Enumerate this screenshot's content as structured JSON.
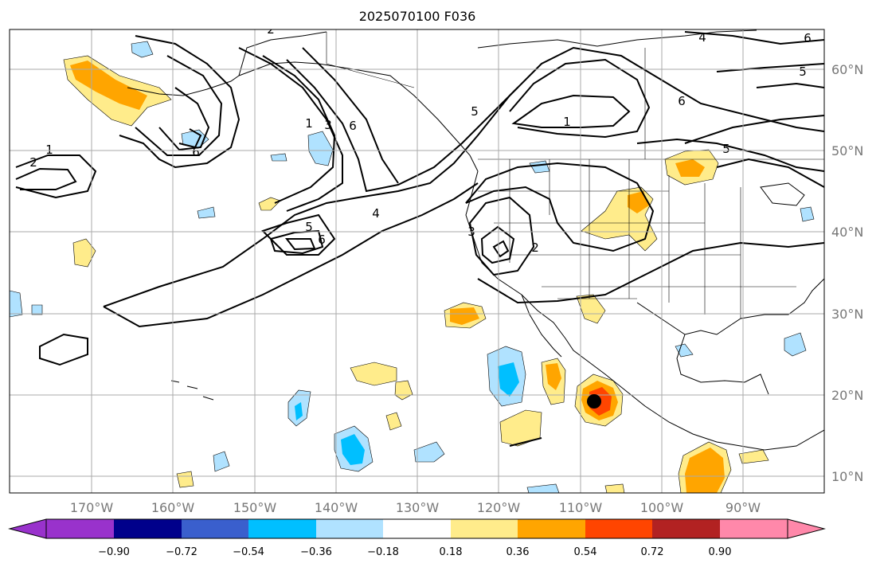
{
  "title": "2025070100 F036",
  "longitude_ticks": [
    "170°W",
    "160°W",
    "150°W",
    "140°W",
    "130°W",
    "120°W",
    "110°W",
    "100°W",
    "90°W"
  ],
  "latitude_ticks": [
    "60°N",
    "50°N",
    "40°N",
    "30°N",
    "20°N",
    "10°N"
  ],
  "colorbar": {
    "ticks": [
      "−0.90",
      "−0.72",
      "−0.54",
      "−0.36",
      "−0.18",
      "0.18",
      "0.36",
      "0.54",
      "0.72",
      "0.90"
    ],
    "colors": [
      "#9932cc",
      "#00008b",
      "#3a5fcd",
      "#00bfff",
      "#b0e2ff",
      "#ffffff",
      "#ffec8b",
      "#ffa500",
      "#ff4500",
      "#b22222",
      "#ff88aa"
    ]
  },
  "contour_labels": [
    "1",
    "2",
    "3",
    "4",
    "5",
    "6"
  ],
  "colors": {
    "ocean": "#ffffff",
    "coast": "#000000",
    "grid": "#aaaaaa",
    "tick_label": "#777777",
    "storm_marker": "#000000"
  }
}
